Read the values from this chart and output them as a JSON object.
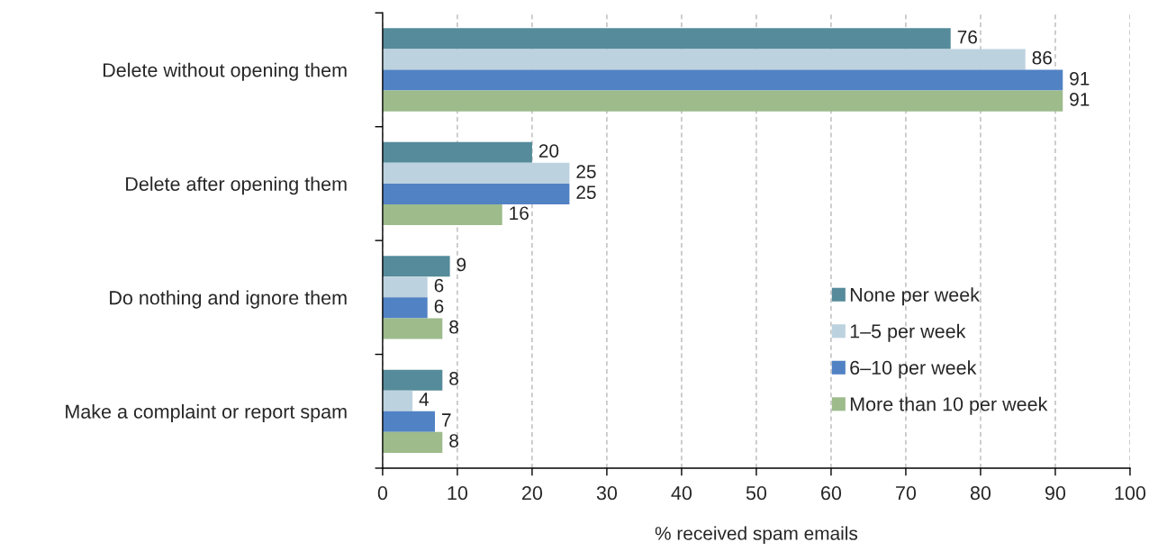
{
  "chart_data": {
    "type": "bar",
    "orientation": "horizontal",
    "categories": [
      "Delete without opening them",
      "Delete after opening them",
      "Do nothing and ignore them",
      "Make a complaint or report spam"
    ],
    "series": [
      {
        "name": "None per week",
        "color": "#558b9a",
        "values": [
          76,
          20,
          9,
          8
        ]
      },
      {
        "name": "1–5 per week",
        "color": "#bdd2df",
        "values": [
          86,
          25,
          6,
          4
        ]
      },
      {
        "name": "6–10 per week",
        "color": "#5182c4",
        "values": [
          91,
          25,
          6,
          7
        ]
      },
      {
        "name": "More than 10 per week",
        "color": "#9dbb8b",
        "values": [
          91,
          16,
          8,
          8
        ]
      }
    ],
    "xlabel": "% received spam emails",
    "xlim": [
      0,
      100
    ],
    "xticks": [
      0,
      10,
      20,
      30,
      40,
      50,
      60,
      70,
      80,
      90,
      100
    ],
    "grid": "x",
    "legend": "lower right",
    "data_labels": true
  }
}
